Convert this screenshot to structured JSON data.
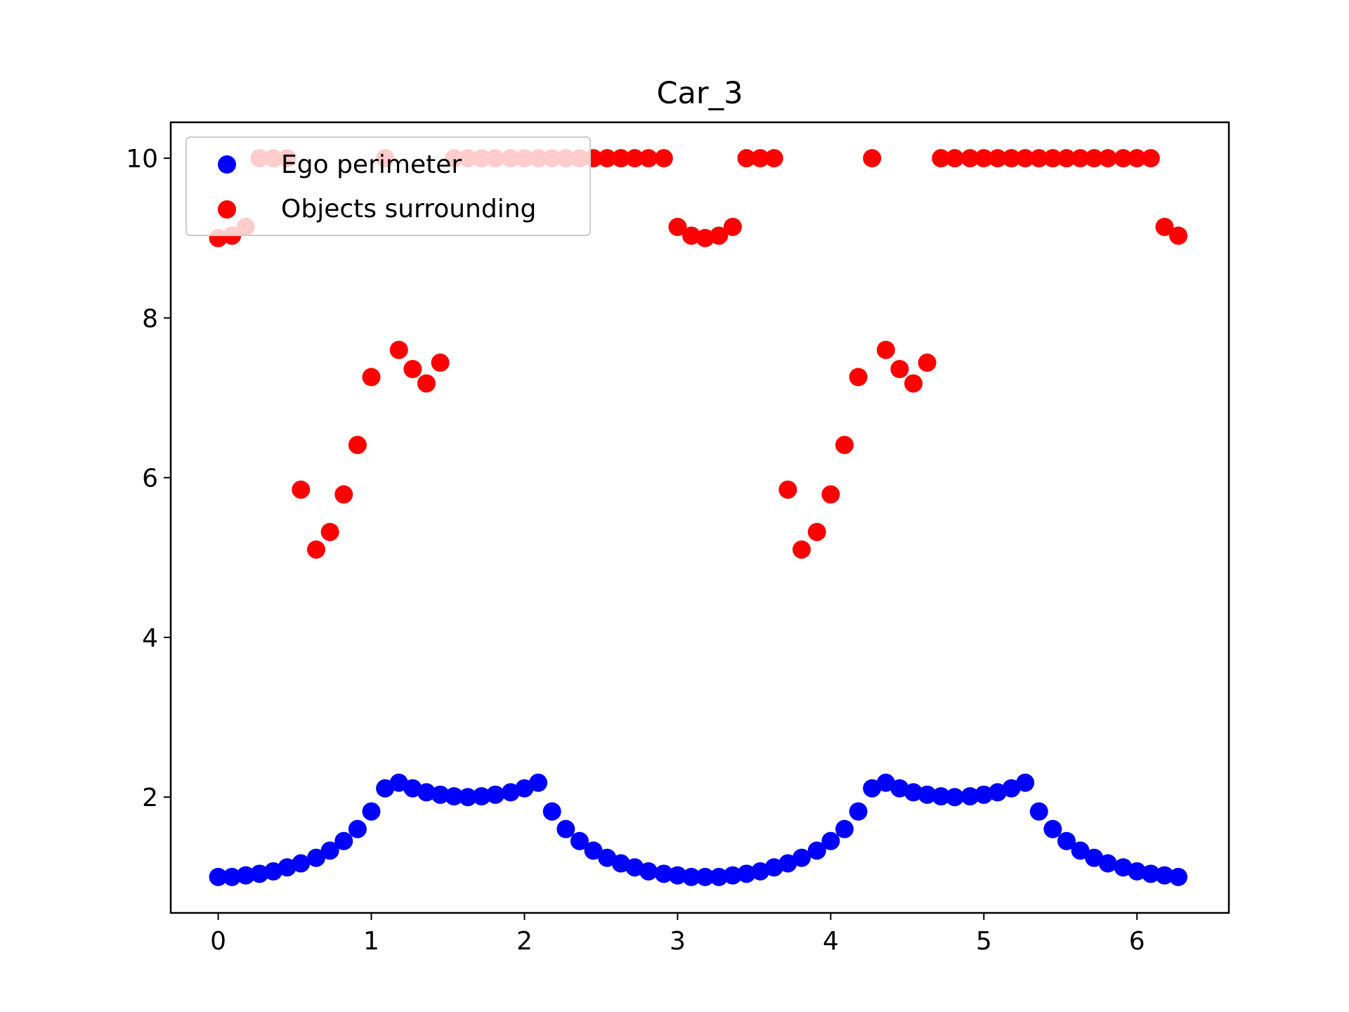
{
  "chart_data": {
    "type": "scatter",
    "title": "Car_3",
    "xlabel": "",
    "ylabel": "",
    "xlim": [
      -0.31,
      6.6
    ],
    "ylim": [
      0.55,
      10.45
    ],
    "xticks": [
      0,
      1,
      2,
      3,
      4,
      5,
      6
    ],
    "yticks": [
      2,
      4,
      6,
      8,
      10
    ],
    "grid": false,
    "legend_position": "top-left",
    "x": [
      0.0,
      0.09,
      0.18,
      0.27,
      0.36,
      0.45,
      0.54,
      0.64,
      0.73,
      0.82,
      0.91,
      1.0,
      1.09,
      1.18,
      1.27,
      1.36,
      1.45,
      1.54,
      1.63,
      1.72,
      1.81,
      1.91,
      2.0,
      2.09,
      2.18,
      2.27,
      2.36,
      2.45,
      2.54,
      2.63,
      2.72,
      2.81,
      2.91,
      3.0,
      3.09,
      3.18,
      3.27,
      3.36,
      3.45,
      3.54,
      3.63,
      3.72,
      3.81,
      3.91,
      4.0,
      4.09,
      4.18,
      4.27,
      4.36,
      4.45,
      4.54,
      4.63,
      4.72,
      4.81,
      4.91,
      5.0,
      5.09,
      5.18,
      5.27,
      5.36,
      5.45,
      5.54,
      5.63,
      5.72,
      5.81,
      5.91,
      6.0,
      6.09,
      6.18,
      6.27
    ],
    "series": [
      {
        "name": "Ego perimeter",
        "color": "#0000ff",
        "values": [
          1.0,
          1.0,
          1.02,
          1.04,
          1.07,
          1.12,
          1.17,
          1.24,
          1.33,
          1.45,
          1.6,
          1.82,
          2.11,
          2.18,
          2.11,
          2.06,
          2.03,
          2.01,
          2.0,
          2.01,
          2.03,
          2.06,
          2.11,
          2.18,
          1.82,
          1.6,
          1.45,
          1.33,
          1.24,
          1.17,
          1.12,
          1.07,
          1.04,
          1.02,
          1.0,
          1.0,
          1.0,
          1.02,
          1.04,
          1.07,
          1.12,
          1.17,
          1.24,
          1.33,
          1.45,
          1.6,
          1.82,
          2.11,
          2.18,
          2.11,
          2.06,
          2.03,
          2.01,
          2.0,
          2.01,
          2.03,
          2.06,
          2.11,
          2.18,
          1.82,
          1.6,
          1.45,
          1.33,
          1.24,
          1.17,
          1.12,
          1.07,
          1.04,
          1.02,
          1.0
        ]
      },
      {
        "name": "Objects surrounding",
        "color": "#ff0000",
        "values": [
          9.0,
          9.03,
          9.14,
          10.0,
          10.0,
          10.0,
          5.85,
          5.1,
          5.32,
          5.79,
          6.41,
          7.26,
          10.0,
          7.6,
          7.36,
          7.18,
          7.44,
          10.0,
          10.0,
          10.0,
          10.0,
          10.0,
          10.0,
          10.0,
          10.0,
          10.0,
          10.0,
          10.0,
          10.0,
          10.0,
          10.0,
          10.0,
          10.0,
          9.14,
          9.03,
          9.0,
          9.03,
          9.14,
          10.0,
          10.0,
          10.0,
          5.85,
          5.1,
          5.32,
          5.79,
          6.41,
          7.26,
          10.0,
          7.6,
          7.36,
          7.18,
          7.44,
          10.0,
          10.0,
          10.0,
          10.0,
          10.0,
          10.0,
          10.0,
          10.0,
          10.0,
          10.0,
          10.0,
          10.0,
          10.0,
          10.0,
          10.0,
          10.0,
          9.14,
          9.03
        ]
      }
    ]
  }
}
